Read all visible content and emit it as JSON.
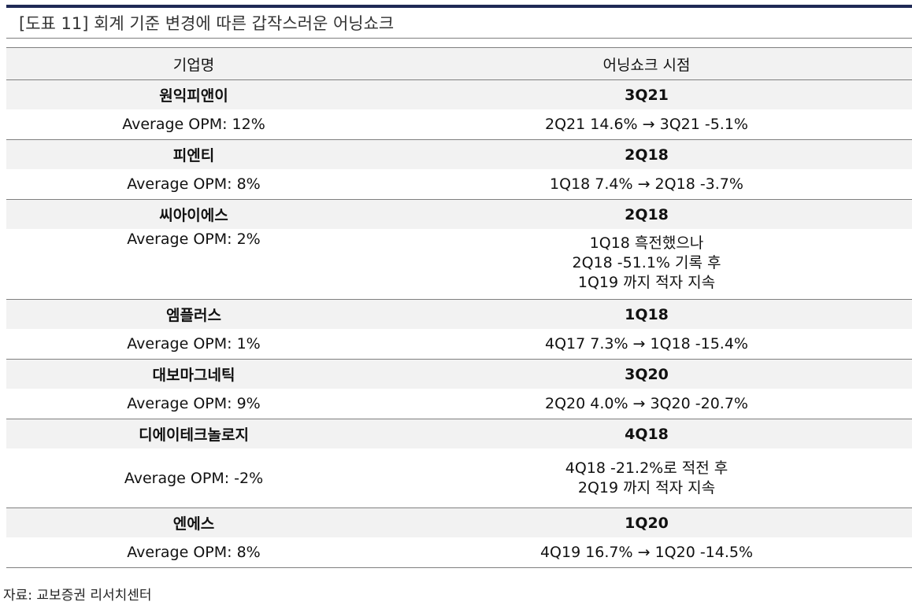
{
  "title": "[도표 11] 회계 기준 변경에 따른 갑작스러운 어닝쇼크",
  "table": {
    "columns": [
      "기업명",
      "어닝쇼크 시점"
    ],
    "rows": [
      {
        "company": "원익피앤이",
        "quarter": "3Q21",
        "avg": "Average OPM: 12%",
        "detail": [
          "2Q21 14.6% → 3Q21 -5.1%"
        ]
      },
      {
        "company": "피엔티",
        "quarter": "2Q18",
        "avg": "Average OPM: 8%",
        "detail": [
          "1Q18 7.4% → 2Q18 -3.7%"
        ]
      },
      {
        "company": "씨아이에스",
        "quarter": "2Q18",
        "avg": "Average OPM: 2%",
        "detail": [
          "1Q18 흑전했으나",
          "2Q18 -51.1% 기록 후",
          "1Q19 까지 적자 지속"
        ]
      },
      {
        "company": "엠플러스",
        "quarter": "1Q18",
        "avg": "Average OPM: 1%",
        "detail": [
          "4Q17 7.3% → 1Q18 -15.4%"
        ]
      },
      {
        "company": "대보마그네틱",
        "quarter": "3Q20",
        "avg": "Average OPM: 9%",
        "detail": [
          "2Q20 4.0% → 3Q20 -20.7%"
        ]
      },
      {
        "company": "디에이테크놀로지",
        "quarter": "4Q18",
        "avg": "Average OPM: -2%",
        "detail": [
          "4Q18 -21.2%로 적전 후",
          "2Q19 까지 적자 지속"
        ]
      },
      {
        "company": "엔에스",
        "quarter": "1Q20",
        "avg": "Average OPM: 8%",
        "detail": [
          "4Q19 16.7% → 1Q20 -14.5%"
        ]
      }
    ]
  },
  "source": "자료: 교보증권 리서치센터"
}
